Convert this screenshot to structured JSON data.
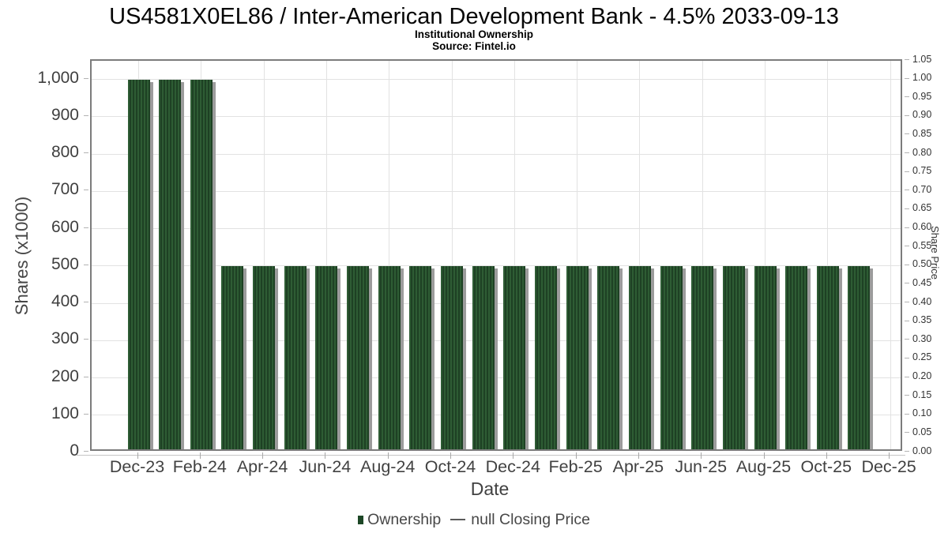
{
  "chart_data": {
    "type": "bar",
    "title": "US4581X0EL86 / Inter-American Development Bank - 4.5% 2033-09-13",
    "subtitle": "Institutional Ownership",
    "source": "Source: Fintel.io",
    "xlabel": "Date",
    "ylabel_left": "Shares (x1000)",
    "ylabel_right": "Share Price",
    "categories": [
      "Dec-23",
      "Jan-24",
      "Feb-24",
      "Mar-24",
      "Apr-24",
      "May-24",
      "Jun-24",
      "Jul-24",
      "Aug-24",
      "Sep-24",
      "Oct-24",
      "Nov-24",
      "Dec-24",
      "Jan-25",
      "Feb-25",
      "Mar-25",
      "Apr-25",
      "May-25",
      "Jun-25",
      "Jul-25",
      "Aug-25",
      "Sep-25",
      "Oct-25",
      "Nov-25"
    ],
    "series": [
      {
        "name": "Ownership",
        "values": [
          1000,
          1000,
          1000,
          500,
          500,
          500,
          500,
          500,
          500,
          500,
          500,
          500,
          500,
          500,
          500,
          500,
          500,
          500,
          500,
          500,
          500,
          500,
          500,
          500
        ]
      }
    ],
    "ylim_left": [
      0,
      1050
    ],
    "ylim_right": [
      0,
      1.05
    ],
    "x_tick_labels": [
      "Dec-23",
      "Feb-24",
      "Apr-24",
      "Jun-24",
      "Aug-24",
      "Oct-24",
      "Dec-24",
      "Feb-25",
      "Apr-25",
      "Jun-25",
      "Aug-25",
      "Oct-25",
      "Dec-25"
    ],
    "y_tick_labels_left": [
      "0",
      "100",
      "200",
      "300",
      "400",
      "500",
      "600",
      "700",
      "800",
      "900",
      "1,000"
    ],
    "y_tick_labels_right": [
      "0.00",
      "0.05",
      "0.10",
      "0.15",
      "0.20",
      "0.25",
      "0.30",
      "0.35",
      "0.40",
      "0.45",
      "0.50",
      "0.55",
      "0.60",
      "0.65",
      "0.70",
      "0.75",
      "0.80",
      "0.85",
      "0.90",
      "0.95",
      "1.00",
      "1.05"
    ],
    "grid": true,
    "legend_position": "bottom",
    "legend": {
      "ownership": "Ownership",
      "closing_price": "null Closing Price"
    },
    "colors": {
      "bar": "#2e5c34",
      "bar_stripe": "#1e4124",
      "bar_shadow": "#9c9c9c",
      "legend_swatch": "#1d4726",
      "legend_line": "#5a5a5a"
    }
  }
}
